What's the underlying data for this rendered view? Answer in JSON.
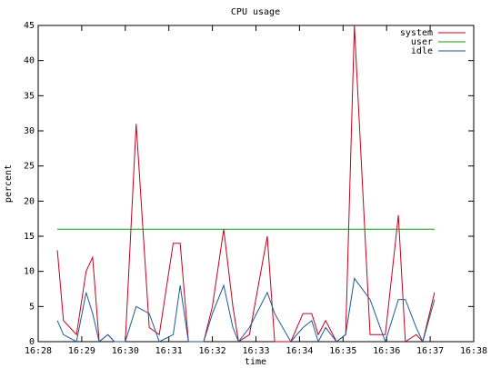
{
  "chart_data": {
    "type": "line",
    "title": "CPU usage",
    "x_label": "time",
    "y_label": "percent",
    "x": [
      28.44,
      28.58,
      28.88,
      29.1,
      29.25,
      29.4,
      29.6,
      29.75,
      30.0,
      30.25,
      30.55,
      30.78,
      31.1,
      31.26,
      31.45,
      31.8,
      32.0,
      32.26,
      32.47,
      32.6,
      32.85,
      33.26,
      33.43,
      33.8,
      34.08,
      34.28,
      34.43,
      34.6,
      34.85,
      35.06,
      35.26,
      35.62,
      35.97,
      36.27,
      36.43,
      36.68,
      36.83,
      37.1
    ],
    "series": [
      {
        "name": "system",
        "color": "#c8001e",
        "values": [
          13,
          3,
          1,
          10,
          12,
          0,
          1,
          0,
          0,
          31,
          2,
          1,
          14,
          14,
          0,
          0,
          5,
          16,
          5,
          0,
          1,
          15,
          0,
          0,
          4,
          4,
          1,
          3,
          0,
          1,
          45,
          1,
          1,
          18,
          0,
          1,
          0,
          7
        ]
      },
      {
        "name": "user",
        "color": "#00a000",
        "values": [
          16,
          16,
          16,
          16,
          16,
          16,
          16,
          16,
          16,
          16,
          16,
          16,
          16,
          16,
          16,
          16,
          16,
          16,
          16,
          16,
          16,
          16,
          16,
          16,
          16,
          16,
          16,
          16,
          16,
          16,
          16,
          16,
          16,
          16,
          16,
          16,
          16,
          16
        ]
      },
      {
        "name": "idle",
        "color": "#1e5a96",
        "values": [
          3,
          1,
          0,
          7,
          4,
          0,
          1,
          0,
          0,
          5,
          4,
          0,
          1,
          8,
          0,
          0,
          4,
          8,
          2,
          0,
          2,
          7,
          4,
          0,
          2,
          3,
          0,
          2,
          0,
          1,
          9,
          6,
          0,
          6,
          6,
          2,
          0,
          6
        ]
      }
    ],
    "xlim": [
      28,
      38
    ],
    "xticks": [
      {
        "value": 28,
        "label": "16:28"
      },
      {
        "value": 29,
        "label": "16:29"
      },
      {
        "value": 30,
        "label": "16:30"
      },
      {
        "value": 31,
        "label": "16:31"
      },
      {
        "value": 32,
        "label": "16:32"
      },
      {
        "value": 33,
        "label": "16:33"
      },
      {
        "value": 34,
        "label": "16:34"
      },
      {
        "value": 35,
        "label": "16:35"
      },
      {
        "value": 36,
        "label": "16:36"
      },
      {
        "value": 37,
        "label": "16:37"
      },
      {
        "value": 38,
        "label": "16:38"
      }
    ],
    "ylim": [
      0,
      45
    ],
    "yticks": [
      0,
      5,
      10,
      15,
      20,
      25,
      30,
      35,
      40,
      45
    ],
    "legend": "top-right"
  }
}
